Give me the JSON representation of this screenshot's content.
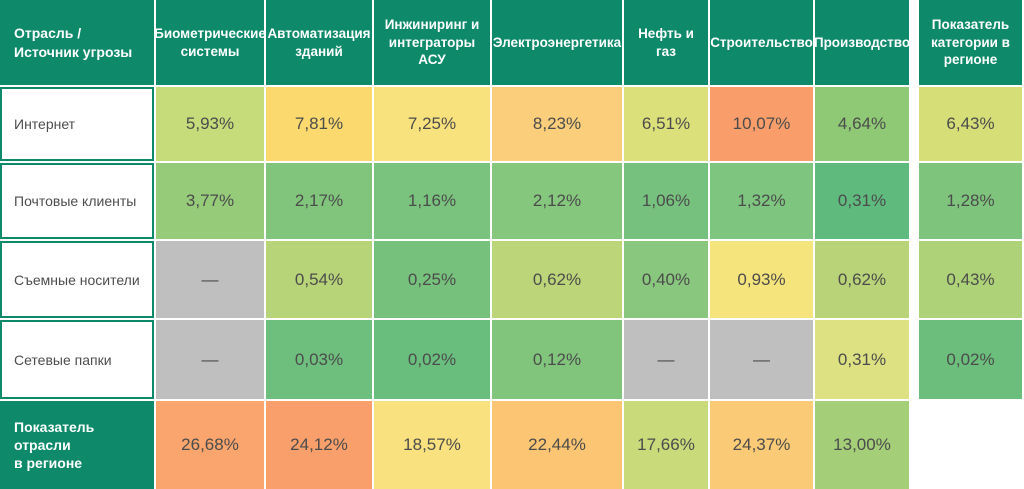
{
  "colors": {
    "header_bg": "#0e8a6b",
    "header_text": "#ffffff",
    "cell_text": "#4c4c4c",
    "label_border": "#0e8a6b",
    "missing_bg": "#bfbfbf",
    "gap": "#ffffff"
  },
  "chart_data": {
    "type": "heatmap",
    "corner_label": "Отрасль /\nИсточник угрозы",
    "columns": [
      "Биометрические системы",
      "Автоматизация зданий",
      "Инжиниринг и интеграторы АСУ",
      "Электроэнергетика",
      "Нефть и газ",
      "Строительство",
      "Производство",
      "Показатель категории в регионе"
    ],
    "rows": [
      {
        "label": "Интернет",
        "cells": [
          {
            "text": "5,93%",
            "bg": "#c6dc7b"
          },
          {
            "text": "7,81%",
            "bg": "#fbd96e"
          },
          {
            "text": "7,25%",
            "bg": "#f8e27d"
          },
          {
            "text": "8,23%",
            "bg": "#fbce7c"
          },
          {
            "text": "6,51%",
            "bg": "#dce07b"
          },
          {
            "text": "10,07%",
            "bg": "#f99e6b"
          },
          {
            "text": "4,64%",
            "bg": "#8fc976"
          },
          {
            "text": "6,43%",
            "bg": "#d6de78"
          }
        ]
      },
      {
        "label": "Почтовые клиенты",
        "cells": [
          {
            "text": "3,77%",
            "bg": "#96cb7a"
          },
          {
            "text": "2,17%",
            "bg": "#81c57c"
          },
          {
            "text": "1,16%",
            "bg": "#7ac37e"
          },
          {
            "text": "2,12%",
            "bg": "#86c77e"
          },
          {
            "text": "1,06%",
            "bg": "#77c17f"
          },
          {
            "text": "1,32%",
            "bg": "#7ec57f"
          },
          {
            "text": "0,31%",
            "bg": "#5fba7e"
          },
          {
            "text": "1,28%",
            "bg": "#7ec47d"
          }
        ]
      },
      {
        "label": "Съемные носители",
        "cells": [
          {
            "text": "—",
            "bg": "#bfbfbf"
          },
          {
            "text": "0,54%",
            "bg": "#b8d478"
          },
          {
            "text": "0,25%",
            "bg": "#76c17c"
          },
          {
            "text": "0,62%",
            "bg": "#bbd578"
          },
          {
            "text": "0,40%",
            "bg": "#88c77d"
          },
          {
            "text": "0,93%",
            "bg": "#f5e37b"
          },
          {
            "text": "0,62%",
            "bg": "#b9d478"
          },
          {
            "text": "0,43%",
            "bg": "#add277"
          }
        ]
      },
      {
        "label": "Сетевые папки",
        "cells": [
          {
            "text": "—",
            "bg": "#bfbfbf"
          },
          {
            "text": "0,03%",
            "bg": "#6ebf7d"
          },
          {
            "text": "0,02%",
            "bg": "#6abe7d"
          },
          {
            "text": "0,12%",
            "bg": "#81c57c"
          },
          {
            "text": "—",
            "bg": "#bfbfbf"
          },
          {
            "text": "—",
            "bg": "#bfbfbf"
          },
          {
            "text": "0,31%",
            "bg": "#dde182"
          },
          {
            "text": "0,02%",
            "bg": "#6bbe7b"
          }
        ]
      },
      {
        "label": "Показатель отрасли\nв регионе",
        "footer": true,
        "cells": [
          {
            "text": "26,68%",
            "bg": "#f9a56d"
          },
          {
            "text": "24,12%",
            "bg": "#f99f6b"
          },
          {
            "text": "18,57%",
            "bg": "#f9e17f"
          },
          {
            "text": "22,44%",
            "bg": "#fbc573"
          },
          {
            "text": "17,66%",
            "bg": "#c8da7a"
          },
          {
            "text": "24,37%",
            "bg": "#fbca76"
          },
          {
            "text": "13,00%",
            "bg": "#a4cf78"
          },
          {
            "text": "",
            "bg": "#ffffff"
          }
        ]
      }
    ]
  }
}
